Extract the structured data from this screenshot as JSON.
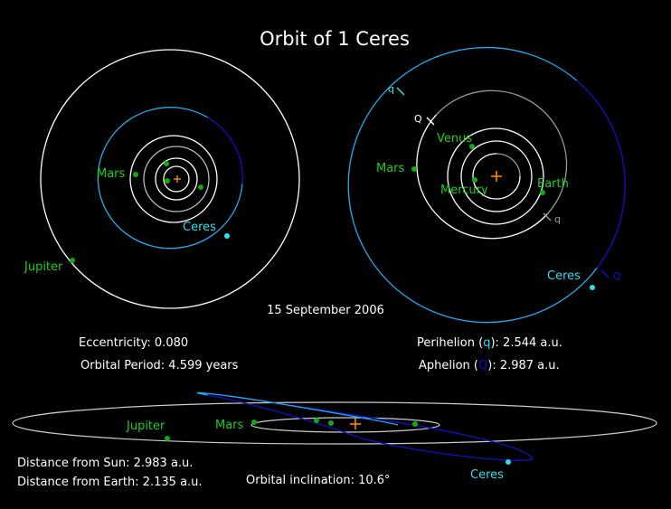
{
  "title": "Orbit of 1 Ceres",
  "date": "15 September 2006",
  "colors": {
    "background": "#000000",
    "planet_label": "#22cc22",
    "planet_dot": "#11aa11",
    "ceres": "#33ddee",
    "ceres_orbit_near": "#22aaee",
    "ceres_orbit_far": "#1111cc",
    "sun": "#ff8800",
    "orbit_white": "#ffffff",
    "orbit_grey": "#999999"
  },
  "left_view": {
    "labels": {
      "mars": "Mars",
      "ceres": "Ceres",
      "jupiter": "Jupiter"
    }
  },
  "right_view": {
    "labels": {
      "venus": "Venus",
      "mars": "Mars",
      "mercury": "Mercury",
      "earth": "Earth",
      "ceres": "Ceres"
    },
    "markers": {
      "ceres_perihelion": "q",
      "ceres_aphelion": "Q",
      "mars_perihelion": "Q",
      "earth_aphelion": "q"
    }
  },
  "side_view": {
    "labels": {
      "jupiter": "Jupiter",
      "mars": "Mars",
      "ceres": "Ceres"
    }
  },
  "stats": {
    "eccentricity": "Eccentricity: 0.080",
    "period": "Orbital Period: 4.599 years",
    "perihelion_prefix": "Perihelion (",
    "perihelion_symbol": "q",
    "perihelion_suffix": "): 2.544 a.u.",
    "aphelion_prefix": "Aphelion (",
    "aphelion_symbol": "Q",
    "aphelion_suffix": "):  2.987 a.u.",
    "distance_sun": "Distance from Sun: 2.983 a.u.",
    "distance_earth": "Distance from Earth: 2.135 a.u.",
    "inclination": "Orbital inclination: 10.6°"
  }
}
